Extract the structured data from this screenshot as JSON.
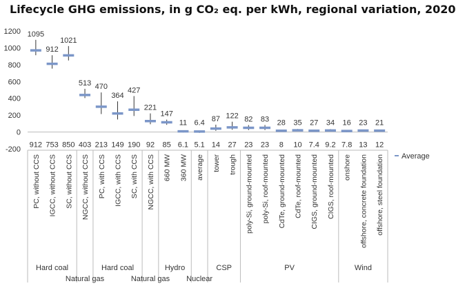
{
  "chart_data": {
    "type": "range",
    "title": "Lifecycle GHG emissions, in g CO₂ eq. per kWh, regional variation, 2020",
    "xlabel": "",
    "ylabel": "",
    "ylim": [
      -200,
      1200
    ],
    "yticks": [
      "-200",
      "0",
      "200",
      "400",
      "600",
      "800",
      "1000",
      "1200"
    ],
    "grid": false,
    "legend": {
      "position": "right",
      "entries": [
        "Average"
      ]
    },
    "categories": [
      {
        "label": "PC, without CCS",
        "max": 1095,
        "min": 912,
        "avg": 970,
        "max_label": "1095",
        "min_label": "912"
      },
      {
        "label": "IGCC, without CCS",
        "max": 912,
        "min": 753,
        "avg": 810,
        "max_label": "912",
        "min_label": "753"
      },
      {
        "label": "SC, without CCS",
        "max": 1021,
        "min": 850,
        "avg": 910,
        "max_label": "1021",
        "min_label": "850"
      },
      {
        "label": "NGCC, without CCS",
        "max": 513,
        "min": 403,
        "avg": 440,
        "max_label": "513",
        "min_label": "403"
      },
      {
        "label": "PC, with CCS",
        "max": 470,
        "min": 213,
        "avg": 300,
        "max_label": "470",
        "min_label": "213"
      },
      {
        "label": "IGCC, with CCS",
        "max": 364,
        "min": 149,
        "avg": 220,
        "max_label": "364",
        "min_label": "149"
      },
      {
        "label": "SC, with CCS",
        "max": 427,
        "min": 190,
        "avg": 265,
        "max_label": "427",
        "min_label": "190"
      },
      {
        "label": "NGCC, with CCS",
        "max": 221,
        "min": 92,
        "avg": 130,
        "max_label": "221",
        "min_label": "92"
      },
      {
        "label": "660 MW",
        "max": 147,
        "min": 85,
        "avg": 115,
        "max_label": "147",
        "min_label": "85"
      },
      {
        "label": "360 MW",
        "max": 11,
        "min": 6.1,
        "avg": 8,
        "max_label": "11",
        "min_label": "6.1"
      },
      {
        "label": "average",
        "max": 6.4,
        "min": 5.1,
        "avg": 5.8,
        "max_label": "6.4",
        "min_label": "5.1"
      },
      {
        "label": "tower",
        "max": 87,
        "min": 14,
        "avg": 40,
        "max_label": "87",
        "min_label": "14"
      },
      {
        "label": "trough",
        "max": 122,
        "min": 27,
        "avg": 55,
        "max_label": "122",
        "min_label": "27"
      },
      {
        "label": "poly-Si, ground-mounted",
        "max": 82,
        "min": 23,
        "avg": 50,
        "max_label": "82",
        "min_label": "23"
      },
      {
        "label": "poly-Si, roof-mounted",
        "max": 83,
        "min": 23,
        "avg": 50,
        "max_label": "83",
        "min_label": "23"
      },
      {
        "label": "CdTe, ground-mounted",
        "max": 28,
        "min": 8,
        "avg": 15,
        "max_label": "28",
        "min_label": "8"
      },
      {
        "label": "CdTe, roof-mounted",
        "max": 35,
        "min": 10,
        "avg": 20,
        "max_label": "35",
        "min_label": "10"
      },
      {
        "label": "CIGS, ground-mounted",
        "max": 27,
        "min": 7.4,
        "avg": 15,
        "max_label": "27",
        "min_label": "7.4"
      },
      {
        "label": "CIGS, roof-mounted",
        "max": 34,
        "min": 9.2,
        "avg": 18,
        "max_label": "34",
        "min_label": "9.2"
      },
      {
        "label": "onshore",
        "max": 16,
        "min": 7.8,
        "avg": 12,
        "max_label": "16",
        "min_label": "7.8"
      },
      {
        "label": "offshore, concrete foundation",
        "max": 23,
        "min": 13,
        "avg": 17,
        "max_label": "23",
        "min_label": "13"
      },
      {
        "label": "offshore, steel foundation",
        "max": 21,
        "min": 12,
        "avg": 16,
        "max_label": "21",
        "min_label": "12"
      }
    ],
    "groups": [
      {
        "label": "Hard coal",
        "start": 0,
        "end": 2,
        "row": 0
      },
      {
        "label": "Natural gas",
        "start": 3,
        "end": 3,
        "row": 1
      },
      {
        "label": "Hard coal",
        "start": 4,
        "end": 6,
        "row": 0
      },
      {
        "label": "Natural gas",
        "start": 7,
        "end": 7,
        "row": 1
      },
      {
        "label": "Hydro",
        "start": 8,
        "end": 9,
        "row": 0
      },
      {
        "label": "Nuclear",
        "start": 10,
        "end": 10,
        "row": 1
      },
      {
        "label": "CSP",
        "start": 11,
        "end": 12,
        "row": 0
      },
      {
        "label": "PV",
        "start": 13,
        "end": 18,
        "row": 0
      },
      {
        "label": "Wind",
        "start": 19,
        "end": 21,
        "row": 0
      }
    ],
    "colors": {
      "range_line": "#333333",
      "average_marker": "#7b96c8",
      "axis": "#bbbbbb",
      "text": "#333333"
    }
  }
}
